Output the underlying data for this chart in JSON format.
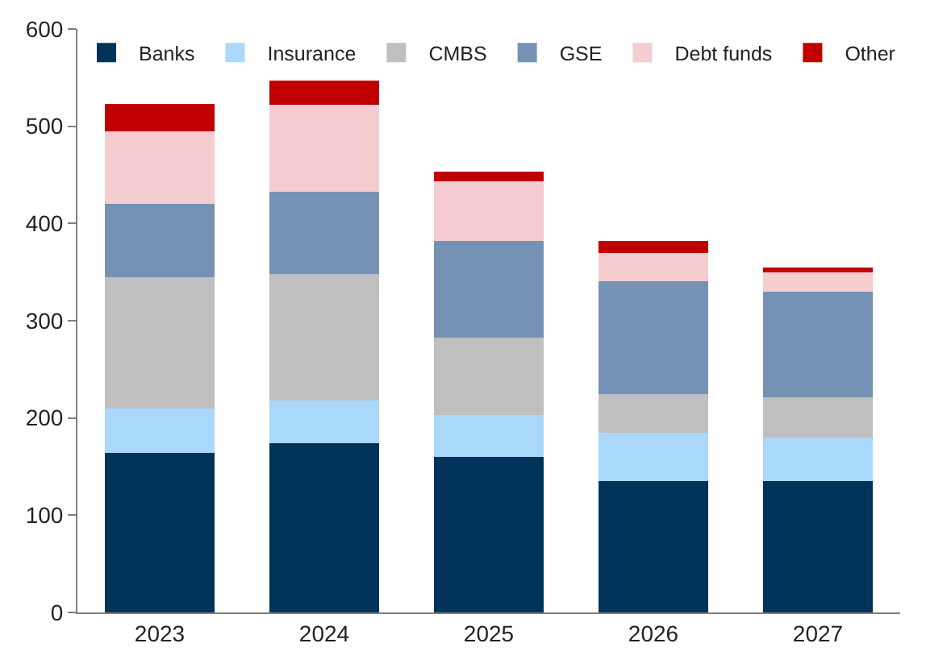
{
  "chart_data": {
    "type": "bar",
    "stacked": true,
    "categories": [
      "2023",
      "2024",
      "2025",
      "2026",
      "2027"
    ],
    "series": [
      {
        "name": "Banks",
        "color": "#003359",
        "values": [
          164,
          174,
          160,
          135,
          135
        ]
      },
      {
        "name": "Insurance",
        "color": "#aad8fb",
        "values": [
          46,
          44,
          43,
          50,
          45
        ]
      },
      {
        "name": "CMBS",
        "color": "#bfbfbf",
        "values": [
          135,
          130,
          80,
          40,
          41
        ]
      },
      {
        "name": "GSE",
        "color": "#7592b5",
        "values": [
          75,
          85,
          99,
          116,
          109
        ]
      },
      {
        "name": "Debt funds",
        "color": "#f5cccf",
        "values": [
          75,
          89,
          61,
          29,
          20
        ]
      },
      {
        "name": "Other",
        "color": "#c00000",
        "values": [
          28,
          25,
          10,
          12,
          5
        ]
      }
    ],
    "ylim": [
      0,
      600
    ],
    "yticks": [
      0,
      100,
      200,
      300,
      400,
      500,
      600
    ],
    "legend": "top"
  }
}
